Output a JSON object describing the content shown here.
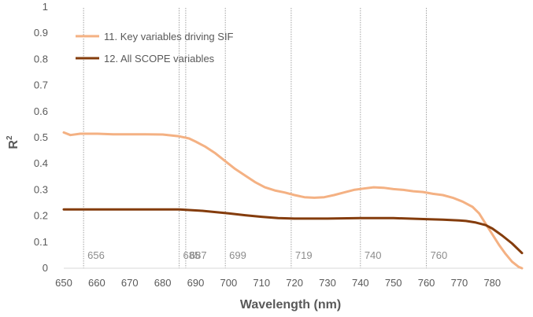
{
  "chart_data": {
    "type": "line",
    "xlabel": "Wavelength (nm)",
    "ylabel": "R",
    "ylabel_superscript": "2",
    "xlim": [
      650,
      789
    ],
    "ylim": [
      0,
      1
    ],
    "xticks": [
      650,
      660,
      670,
      680,
      690,
      700,
      710,
      720,
      730,
      740,
      750,
      760,
      770,
      780
    ],
    "yticks": [
      0,
      0.1,
      0.2,
      0.3,
      0.4,
      0.5,
      0.6,
      0.7,
      0.8,
      0.9,
      1
    ],
    "ytick_labels": [
      "0",
      "0.1",
      "0.2",
      "0.3",
      "0.4",
      "0.5",
      "0.6",
      "0.7",
      "0.8",
      "0.9",
      "1"
    ],
    "grid": false,
    "legend_position": "top-left",
    "reference_lines": [
      {
        "x": 656,
        "label": "656"
      },
      {
        "x": 685,
        "label": "685"
      },
      {
        "x": 687,
        "label": "687"
      },
      {
        "x": 699,
        "label": "699"
      },
      {
        "x": 719,
        "label": "719"
      },
      {
        "x": 740,
        "label": "740"
      },
      {
        "x": 760,
        "label": "760"
      }
    ],
    "series": [
      {
        "name": "11. Key variables driving SIF",
        "color": "#f4b183",
        "x": [
          650,
          652,
          655,
          660,
          665,
          670,
          675,
          680,
          685,
          688,
          690,
          693,
          696,
          699,
          702,
          705,
          708,
          711,
          714,
          717,
          720,
          723,
          726,
          729,
          732,
          735,
          738,
          741,
          744,
          747,
          750,
          753,
          756,
          759,
          762,
          765,
          768,
          771,
          774,
          776,
          778,
          780,
          782,
          784,
          786,
          788,
          789
        ],
        "y": [
          0.52,
          0.51,
          0.515,
          0.515,
          0.513,
          0.513,
          0.513,
          0.512,
          0.505,
          0.497,
          0.485,
          0.465,
          0.44,
          0.41,
          0.38,
          0.355,
          0.33,
          0.31,
          0.298,
          0.29,
          0.28,
          0.272,
          0.27,
          0.272,
          0.28,
          0.29,
          0.3,
          0.305,
          0.31,
          0.308,
          0.303,
          0.3,
          0.295,
          0.292,
          0.285,
          0.28,
          0.27,
          0.255,
          0.235,
          0.21,
          0.17,
          0.13,
          0.09,
          0.055,
          0.025,
          0.005,
          0.0
        ]
      },
      {
        "name": "12. All SCOPE variables",
        "color": "#843c0c",
        "x": [
          650,
          660,
          670,
          680,
          685,
          688,
          692,
          696,
          700,
          705,
          710,
          715,
          720,
          730,
          740,
          750,
          760,
          765,
          770,
          772,
          775,
          778,
          780,
          783,
          786,
          789
        ],
        "y": [
          0.225,
          0.225,
          0.225,
          0.225,
          0.225,
          0.223,
          0.22,
          0.215,
          0.21,
          0.203,
          0.197,
          0.192,
          0.19,
          0.19,
          0.192,
          0.192,
          0.188,
          0.186,
          0.183,
          0.181,
          0.175,
          0.165,
          0.152,
          0.125,
          0.095,
          0.058
        ]
      }
    ]
  }
}
